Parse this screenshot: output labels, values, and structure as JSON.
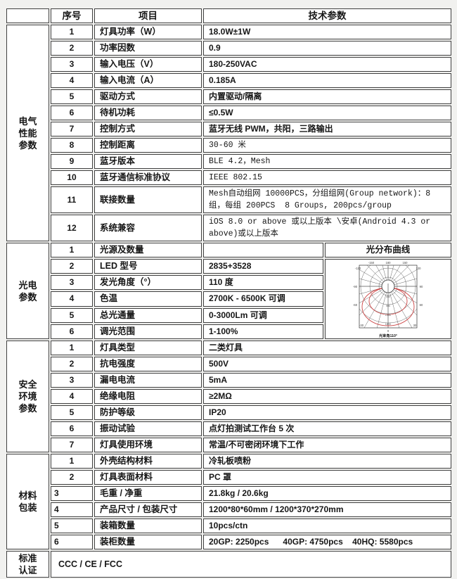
{
  "page": {
    "background": "#f1f1ef"
  },
  "table": {
    "header": {
      "no": "序号",
      "item": "项目",
      "param": "技术参数"
    },
    "sections": [
      {
        "name": "electrical",
        "category_lines": [
          "电气",
          "性能",
          "参数"
        ],
        "rows": [
          {
            "no": "1",
            "item": "灯具功率（W）",
            "value": "18.0W±1W"
          },
          {
            "no": "2",
            "item": "功率因数",
            "value": "0.9"
          },
          {
            "no": "3",
            "item": "输入电压（V）",
            "value": "180-250VAC"
          },
          {
            "no": "4",
            "item": "输入电流（A）",
            "value": "0.185A"
          },
          {
            "no": "5",
            "item": "驱动方式",
            "value": "内置驱动/隔离"
          },
          {
            "no": "6",
            "item": "待机功耗",
            "value": "≤0.5W"
          },
          {
            "no": "7",
            "item": "控制方式",
            "value": "蓝牙无线 PWM，共阳，三路输出"
          },
          {
            "no": "8",
            "item": "控制距离",
            "value": "30-60 米"
          },
          {
            "no": "9",
            "item": "蓝牙版本",
            "value": "BLE 4.2，Mesh"
          },
          {
            "no": "10",
            "item": "蓝牙通信标准协议",
            "value": "IEEE 802.15"
          },
          {
            "no": "11",
            "item": "联接数量",
            "value": "Mesh自动组网 10000PCS，分组组网(Group network)：8 组，每组 200PCS  8 Groups, 200pcs/group"
          },
          {
            "no": "12",
            "item": "系统兼容",
            "value": "iOS 8.0 or above 或以上版本 \\安卓(Android 4.3 or above)或以上版本"
          }
        ]
      },
      {
        "name": "photoelectric",
        "category_lines": [
          "光电",
          "参数"
        ],
        "rows": [
          {
            "no": "1",
            "item": "光源及数量",
            "value": ""
          },
          {
            "no": "2",
            "item": "LED 型号",
            "value": "2835+3528"
          },
          {
            "no": "3",
            "item": "发光角度（°）",
            "value": "110 度"
          },
          {
            "no": "4",
            "item": "色温",
            "value": "2700K - 6500K 可调"
          },
          {
            "no": "5",
            "item": "总光通量",
            "value": "0-3000Lm 可调"
          },
          {
            "no": "6",
            "item": "调光范围",
            "value": "1-100%"
          }
        ],
        "photometric": {
          "title": "光分布曲线",
          "caption": "光束角110°",
          "angle_labels": [
            "180",
            "-150",
            "150",
            "-120",
            "120",
            "-90",
            "90",
            "-60",
            "60",
            "-30",
            "30",
            "0"
          ],
          "radial_labels": [
            "450",
            "900",
            "1350",
            "1800"
          ],
          "curve_color": "#cc4444",
          "grid_color": "#555555"
        }
      },
      {
        "name": "safety",
        "category_lines": [
          "安全",
          "环境",
          "参数"
        ],
        "rows": [
          {
            "no": "1",
            "item": "灯具类型",
            "value": "二类灯具"
          },
          {
            "no": "2",
            "item": "抗电强度",
            "value": "500V"
          },
          {
            "no": "3",
            "item": "漏电电流",
            "value": "5mA"
          },
          {
            "no": "4",
            "item": "绝缘电阻",
            "value": "≥2MΩ"
          },
          {
            "no": "5",
            "item": "防护等级",
            "value": "IP20"
          },
          {
            "no": "6",
            "item": "振动试验",
            "value": "点灯拍测试工作台 5 次"
          },
          {
            "no": "7",
            "item": "灯具使用环境",
            "value": "常温/不可密闭环境下工作"
          }
        ]
      },
      {
        "name": "material",
        "category_lines": [
          "材料",
          "包装"
        ],
        "rows": [
          {
            "no": "1",
            "item": "外壳结构材料",
            "value": "冷轧板喷粉"
          },
          {
            "no": "2",
            "item": "灯具表面材料",
            "value": "PC 罩"
          },
          {
            "no": "3",
            "item": "毛重 / 净重",
            "value": "21.8kg / 20.6kg"
          },
          {
            "no": "4",
            "item": "产品尺寸 / 包装尺寸",
            "value": "1200*80*60mm / 1200*370*270mm"
          },
          {
            "no": "5",
            "item": "装箱数量",
            "value": "10pcs/ctn"
          },
          {
            "no": "6",
            "item": "装柜数量",
            "value": "20GP: 2250pcs      40GP: 4750pcs    40HQ: 5580pcs"
          }
        ]
      }
    ],
    "certification": {
      "category_lines": [
        "标准",
        "认证"
      ],
      "value": "CCC / CE / FCC"
    }
  }
}
